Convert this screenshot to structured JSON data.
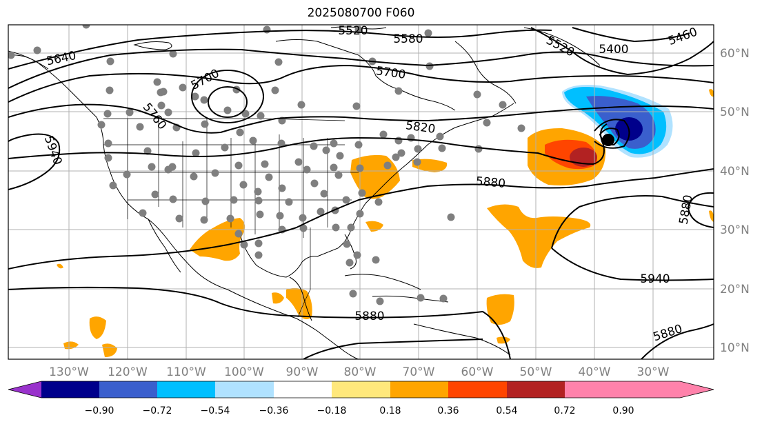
{
  "title": "2025080700 F060",
  "colors": {
    "land_outline": "#000000",
    "grid": "#b0b0b0",
    "contour": "#000000",
    "station": "#7f7f7f",
    "tick_text": "#808080"
  },
  "axes": {
    "lon_ticks": [
      "130°W",
      "120°W",
      "110°W",
      "100°W",
      "90°W",
      "80°W",
      "70°W",
      "60°W",
      "50°W",
      "40°W",
      "30°W"
    ],
    "lat_ticks": [
      "60°N",
      "50°N",
      "40°N",
      "30°N",
      "20°N",
      "10°N"
    ]
  },
  "contour_labels": [
    "5520",
    "5580",
    "5520",
    "5400",
    "5460",
    "5640",
    "5700",
    "5700",
    "5760",
    "5820",
    "5940",
    "5880",
    "5880",
    "5940",
    "5880",
    "5880"
  ],
  "colorbar": {
    "ticks": [
      "−0.90",
      "−0.72",
      "−0.54",
      "−0.36",
      "−0.18",
      "0.18",
      "0.36",
      "0.54",
      "0.72",
      "0.90"
    ],
    "colors": [
      "#9932cc",
      "#00008b",
      "#3a5fcd",
      "#00bfff",
      "#b0e2ff",
      "#ffffff",
      "#ffe87c",
      "#ffa500",
      "#ff4500",
      "#b22222",
      "#ff82ab"
    ]
  }
}
